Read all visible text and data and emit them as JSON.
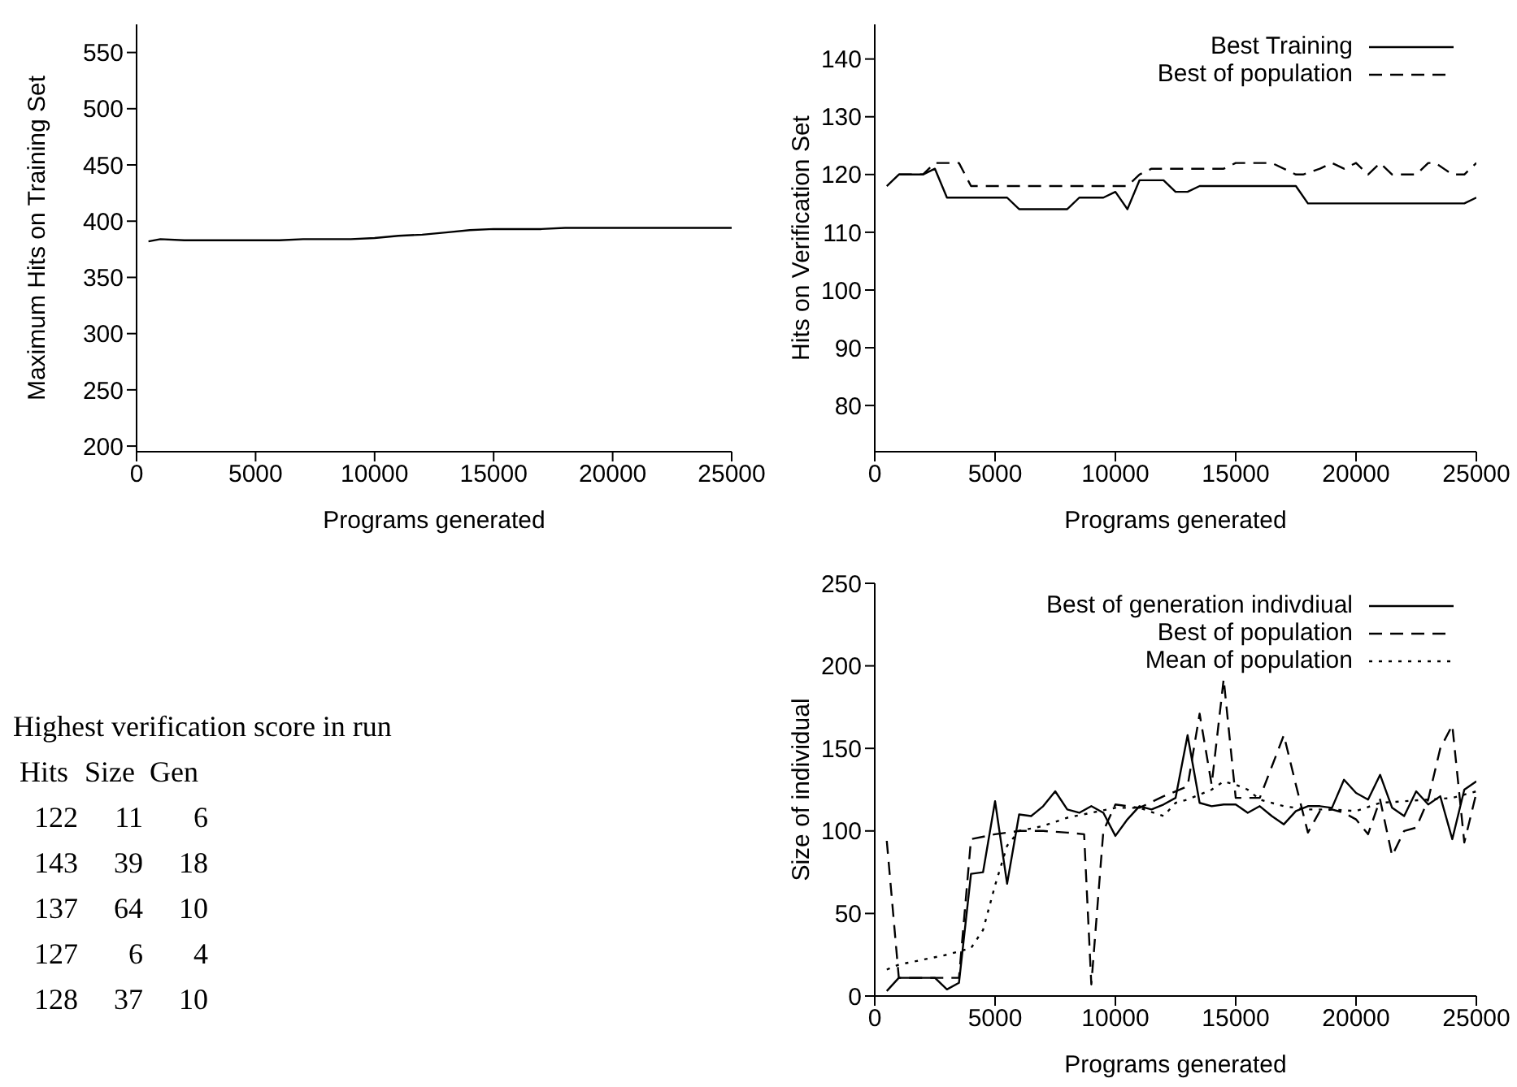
{
  "chart_data": [
    {
      "type": "line",
      "xlabel": "Programs generated",
      "ylabel": "Maximum Hits on Training Set",
      "xlim": [
        0,
        25000
      ],
      "xticks": [
        0,
        5000,
        10000,
        15000,
        20000,
        25000
      ],
      "ylim": [
        195,
        575
      ],
      "yticks": [
        200,
        250,
        300,
        350,
        400,
        450,
        500,
        550
      ],
      "grid": false,
      "legend": false,
      "marker": "none",
      "series": [
        {
          "color": "#000000",
          "line_style": "solid",
          "x": [
            500,
            1000,
            2000,
            3000,
            4000,
            5000,
            6000,
            7000,
            8000,
            9000,
            10000,
            11000,
            12000,
            13000,
            14000,
            15000,
            16000,
            17000,
            18000,
            20000,
            22000,
            25000
          ],
          "values": [
            382,
            384,
            383,
            383,
            383,
            383,
            383,
            384,
            384,
            384,
            385,
            387,
            388,
            390,
            392,
            393,
            393,
            393,
            394,
            394,
            394,
            394
          ]
        }
      ]
    },
    {
      "type": "line",
      "xlabel": "Programs generated",
      "ylabel": "Hits on Verification Set",
      "xlim": [
        0,
        25000
      ],
      "xticks": [
        0,
        5000,
        10000,
        15000,
        20000,
        25000
      ],
      "ylim": [
        72,
        146
      ],
      "yticks": [
        80,
        90,
        100,
        110,
        120,
        130,
        140
      ],
      "grid": false,
      "legend": "top right",
      "marker": "none",
      "series": [
        {
          "name": "Best Training",
          "color": "#000000",
          "line_style": "solid",
          "x": [
            500,
            1000,
            2000,
            2500,
            3000,
            5500,
            6000,
            8000,
            8500,
            9500,
            10000,
            10500,
            11000,
            12000,
            12500,
            13000,
            13500,
            17500,
            18000,
            24500,
            25000
          ],
          "values": [
            118,
            120,
            120,
            121,
            116,
            116,
            114,
            114,
            116,
            116,
            117,
            114,
            119,
            119,
            117,
            117,
            118,
            118,
            115,
            115,
            116
          ]
        },
        {
          "name": "Best of population",
          "color": "#000000",
          "line_style": "dashed",
          "x": [
            1000,
            2000,
            2500,
            3500,
            4000,
            10500,
            11000,
            11500,
            14500,
            15000,
            16500,
            17500,
            17800,
            18500,
            19000,
            19500,
            20000,
            20500,
            21000,
            21500,
            22500,
            23000,
            23300,
            24000,
            24500,
            25000
          ],
          "values": [
            120,
            120,
            122,
            122,
            118,
            118,
            120,
            121,
            121,
            122,
            122,
            120,
            120,
            121,
            122,
            121,
            122,
            120,
            122,
            120,
            120,
            122,
            122,
            120,
            120,
            122
          ]
        }
      ]
    },
    {
      "type": "other",
      "title": "Highest verification score in run",
      "annotations": [
        "Hits Size Gen",
        "122 11 6",
        "143 39 18",
        "137 64 10",
        "127 6 4",
        "128 37 10"
      ]
    },
    {
      "type": "line",
      "xlabel": "Programs generated",
      "ylabel": "Size of individual",
      "xlim": [
        0,
        25000
      ],
      "xticks": [
        0,
        5000,
        10000,
        15000,
        20000,
        25000
      ],
      "ylim": [
        0,
        250
      ],
      "yticks": [
        0,
        50,
        100,
        150,
        200,
        250
      ],
      "grid": false,
      "legend": "top right",
      "marker": "none",
      "series": [
        {
          "name": "Best of generation indivdiual",
          "color": "#000000",
          "line_style": "solid",
          "x": [
            500,
            1000,
            1500,
            2000,
            2500,
            3000,
            3500,
            4000,
            4500,
            5000,
            5500,
            6000,
            6500,
            7000,
            7500,
            8000,
            8500,
            9000,
            9500,
            10000,
            10500,
            11000,
            11500,
            12000,
            12500,
            13000,
            13500,
            14000,
            14500,
            15000,
            15500,
            16000,
            16500,
            17000,
            17500,
            18000,
            18500,
            19000,
            19500,
            20000,
            20500,
            21000,
            21500,
            22000,
            22500,
            23000,
            23500,
            24000,
            24500,
            25000
          ],
          "values": [
            3,
            11,
            11,
            11,
            11,
            4,
            8,
            74,
            75,
            118,
            68,
            110,
            109,
            115,
            124,
            113,
            111,
            115,
            111,
            97,
            107,
            115,
            113,
            116,
            120,
            158,
            117,
            115,
            116,
            116,
            111,
            115,
            109,
            104,
            112,
            115,
            115,
            114,
            131,
            123,
            119,
            134,
            114,
            109,
            124,
            116,
            121,
            95,
            125,
            130
          ]
        },
        {
          "name": "Best of population",
          "color": "#000000",
          "line_style": "dashed",
          "x": [
            500,
            1000,
            1500,
            2000,
            2500,
            3000,
            3500,
            4000,
            5000,
            6000,
            7000,
            8000,
            8700,
            9000,
            9500,
            10000,
            11000,
            12000,
            12500,
            13000,
            13500,
            14000,
            14500,
            15000,
            16000,
            17000,
            17500,
            18000,
            18500,
            19000,
            19500,
            20000,
            20500,
            21000,
            21500,
            22000,
            22500,
            23000,
            23500,
            24000,
            24500,
            25000
          ],
          "values": [
            94,
            11,
            11,
            11,
            11,
            11,
            11,
            95,
            98,
            100,
            100,
            99,
            98,
            7,
            100,
            116,
            114,
            121,
            124,
            127,
            171,
            128,
            192,
            120,
            120,
            158,
            128,
            99,
            112,
            113,
            111,
            107,
            98,
            119,
            85,
            100,
            102,
            119,
            150,
            164,
            93,
            123
          ]
        },
        {
          "name": "Mean of population",
          "color": "#000000",
          "line_style": "dotted",
          "x": [
            500,
            1000,
            2000,
            3000,
            3500,
            4000,
            4500,
            5000,
            5500,
            6000,
            7000,
            8000,
            9000,
            10000,
            11000,
            12000,
            12500,
            13000,
            14000,
            14500,
            15000,
            15500,
            16000,
            17000,
            18000,
            19000,
            20000,
            21000,
            22000,
            23000,
            24000,
            25000
          ],
          "values": [
            16,
            19,
            22,
            25,
            27,
            29,
            40,
            67,
            91,
            100,
            103,
            108,
            111,
            114,
            114,
            109,
            117,
            119,
            125,
            130,
            128,
            125,
            119,
            115,
            113,
            113,
            112,
            117,
            118,
            119,
            120,
            124
          ]
        }
      ]
    }
  ]
}
